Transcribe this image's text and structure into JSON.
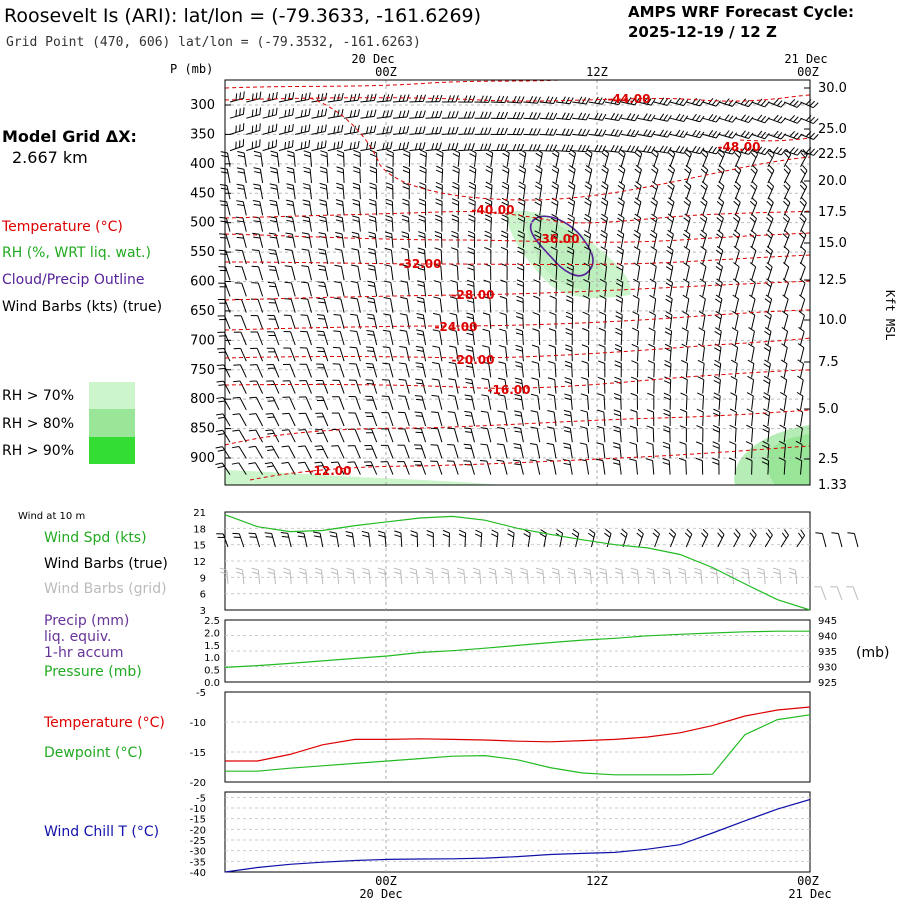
{
  "header": {
    "title": "Roosevelt Is (ARI):  lat/lon = (-79.3633, -161.6269)",
    "subtitle": "Grid Point (470, 606) lat/lon = (-79.3532, -161.6263)",
    "cycle_label": "AMPS WRF Forecast Cycle:",
    "cycle_value": "2025-12-19 / 12  Z"
  },
  "sidebar": {
    "model_grid_label": "Model Grid ΔX:",
    "model_grid_value": "2.667 km",
    "legend_temperature": "Temperature (°C)",
    "legend_rh": "RH (%, WRT liq. wat.)",
    "legend_cloud": "Cloud/Precip Outline",
    "legend_wind": "Wind Barbs (kts) (true)",
    "rh_70": "RH > 70%",
    "rh_80": "RH > 80%",
    "rh_90": "RH > 90%"
  },
  "colors": {
    "temperature": "#dd0000",
    "rh70": "#ccf5cc",
    "rh80": "#99e699",
    "rh90": "#33dd33",
    "cloud": "#552299",
    "green_line": "#22bb22",
    "grid_barb": "#bbbbbb",
    "windchill": "#1111aa"
  },
  "time_axis": {
    "top_dates": [
      "20 Dec",
      "21 Dec"
    ],
    "top_ticks": [
      "00Z",
      "12Z",
      "00Z"
    ],
    "bottom_ticks": [
      "00Z",
      "12Z",
      "00Z"
    ],
    "bottom_dates": [
      "20 Dec",
      "21 Dec"
    ]
  },
  "chart_data": [
    {
      "type": "line",
      "name": "upper-air cross-section",
      "y_axis_label": "P (mb)",
      "pressure_ticks": [
        300,
        350,
        400,
        450,
        500,
        550,
        600,
        650,
        700,
        750,
        800,
        850,
        900
      ],
      "height_ticks": [
        "30.0",
        "25.0",
        "22.5",
        "20.0",
        "17.5",
        "15.0",
        "12.5",
        "10.0",
        "7.5",
        "5.0",
        "2.5",
        "1.33"
      ],
      "height_axis_label": "Kft MSL",
      "temperature_contour_labels": [
        "-44.00",
        "-48.00",
        "-40.00",
        "-36.00",
        "-32.00",
        "-28.00",
        "-24.00",
        "-20.00",
        "-16.00",
        "-12.00"
      ]
    },
    {
      "type": "line",
      "name": "Wind at 10 m",
      "title": "Wind at 10 m",
      "y_ticks": [
        "21",
        "18",
        "15",
        "12",
        "9",
        "6",
        "3"
      ],
      "ylim": [
        3,
        21
      ],
      "series_labels": [
        "Wind Spd (kts)",
        "Wind Barbs (true)",
        "Wind Barbs (grid)"
      ],
      "hours": [
        0,
        2,
        4,
        6,
        8,
        10,
        12,
        14,
        16,
        18,
        20,
        22,
        24,
        26,
        28,
        30,
        32,
        34,
        36
      ],
      "wind_speed_kts": [
        20.5,
        18.3,
        17.4,
        17.6,
        18.5,
        19.2,
        19.9,
        20.2,
        19.5,
        18.0,
        16.9,
        15.9,
        15.0,
        14.4,
        13.2,
        10.8,
        7.8,
        4.9,
        3.0
      ]
    },
    {
      "type": "line",
      "name": "Precip and Pressure",
      "series_labels": [
        "Precip (mm)",
        "liq. equiv.",
        "1-hr accum",
        "Pressure (mb)"
      ],
      "precip_ticks": [
        "2.5",
        "2.0",
        "1.5",
        "1.0",
        "0.5",
        "0.0"
      ],
      "pressure_ticks": [
        "945",
        "940",
        "935",
        "930",
        "925"
      ],
      "right_axis_label": "(mb)",
      "hours": [
        0,
        2,
        4,
        6,
        8,
        10,
        12,
        14,
        16,
        18,
        20,
        22,
        24,
        26,
        28,
        30,
        32,
        34,
        36
      ],
      "pressure_mb": [
        929.7,
        930.3,
        931.0,
        931.8,
        932.6,
        933.4,
        934.5,
        935.1,
        935.9,
        936.8,
        937.7,
        938.5,
        939.1,
        939.9,
        940.4,
        940.8,
        941.2,
        941.4,
        941.4
      ]
    },
    {
      "type": "line",
      "name": "Temperature and Dewpoint",
      "series_labels": [
        "Temperature (°C)",
        "Dewpoint (°C)"
      ],
      "y_ticks": [
        "-5",
        "-10",
        "-15",
        "-20"
      ],
      "ylim": [
        -20,
        -5
      ],
      "hours": [
        0,
        2,
        4,
        6,
        8,
        10,
        12,
        14,
        16,
        18,
        20,
        22,
        24,
        26,
        28,
        30,
        32,
        34,
        36
      ],
      "temperature_c": [
        -16.5,
        -16.5,
        -15.4,
        -13.8,
        -12.9,
        -12.9,
        -12.8,
        -12.9,
        -13.0,
        -13.2,
        -13.3,
        -13.1,
        -12.9,
        -12.5,
        -11.8,
        -10.6,
        -9.0,
        -8.0,
        -7.5
      ],
      "dewpoint_c": [
        -18.2,
        -18.2,
        -17.7,
        -17.3,
        -16.9,
        -16.5,
        -16.1,
        -15.7,
        -15.6,
        -16.3,
        -17.6,
        -18.5,
        -18.8,
        -18.8,
        -18.8,
        -18.7,
        -12.1,
        -9.6,
        -8.8
      ]
    },
    {
      "type": "line",
      "name": "Wind Chill",
      "series_labels": [
        "Wind Chill T (°C)"
      ],
      "y_ticks": [
        "-5",
        "-10",
        "-15",
        "-20",
        "-25",
        "-30",
        "-35",
        "-40"
      ],
      "ylim": [
        -40,
        -2.5
      ],
      "hours": [
        0,
        2,
        4,
        6,
        8,
        10,
        12,
        14,
        16,
        18,
        20,
        22,
        24,
        26,
        28,
        30,
        32,
        34,
        36
      ],
      "windchill_c": [
        -40.0,
        -37.9,
        -36.4,
        -35.4,
        -34.6,
        -34.1,
        -33.9,
        -33.8,
        -33.5,
        -32.8,
        -31.8,
        -31.3,
        -30.8,
        -29.3,
        -27.2,
        -21.7,
        -16.0,
        -10.5,
        -6.0
      ]
    }
  ]
}
